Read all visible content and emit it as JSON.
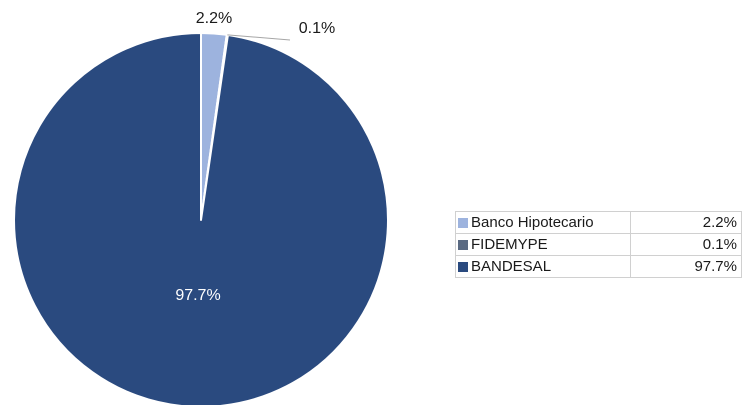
{
  "chart_data": {
    "type": "pie",
    "categories": [
      "Banco Hipotecario",
      "FIDEMYPE",
      "BANDESAL"
    ],
    "values": [
      2.2,
      0.1,
      97.7
    ],
    "value_labels": [
      "2.2%",
      "0.1%",
      "97.7%"
    ],
    "colors": [
      "#9db3de",
      "#5a6a82",
      "#2a4a7f"
    ],
    "start_angle_deg": 0,
    "direction": "clockwise",
    "legend_placement": "right"
  },
  "legend": {
    "rows": [
      {
        "label": "Banco Hipotecario",
        "value": "2.2%",
        "color": "#9db3de"
      },
      {
        "label": "FIDEMYPE",
        "value": "0.1%",
        "color": "#5a6a82"
      },
      {
        "label": "BANDESAL",
        "value": "97.7%",
        "color": "#2a4a7f"
      }
    ]
  }
}
